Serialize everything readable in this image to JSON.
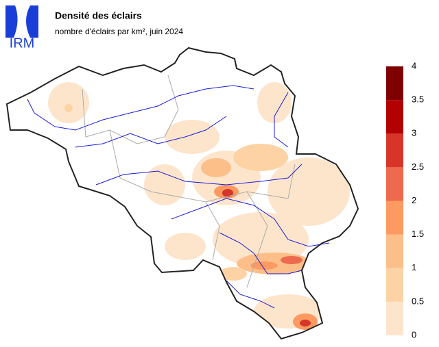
{
  "header": {
    "logo": "IRM",
    "title": "Densité des éclairs",
    "subtitle": "nombre d'éclairs par km², juin 2024"
  },
  "legend": {
    "ticks": [
      0,
      0.5,
      1,
      1.5,
      2,
      2.5,
      3,
      3.5,
      4
    ],
    "colors": [
      "#fde5cc",
      "#fdd3a5",
      "#fdbf8a",
      "#fc9a62",
      "#ee6a4f",
      "#d7352a",
      "#b30000",
      "#7f0000"
    ]
  }
}
